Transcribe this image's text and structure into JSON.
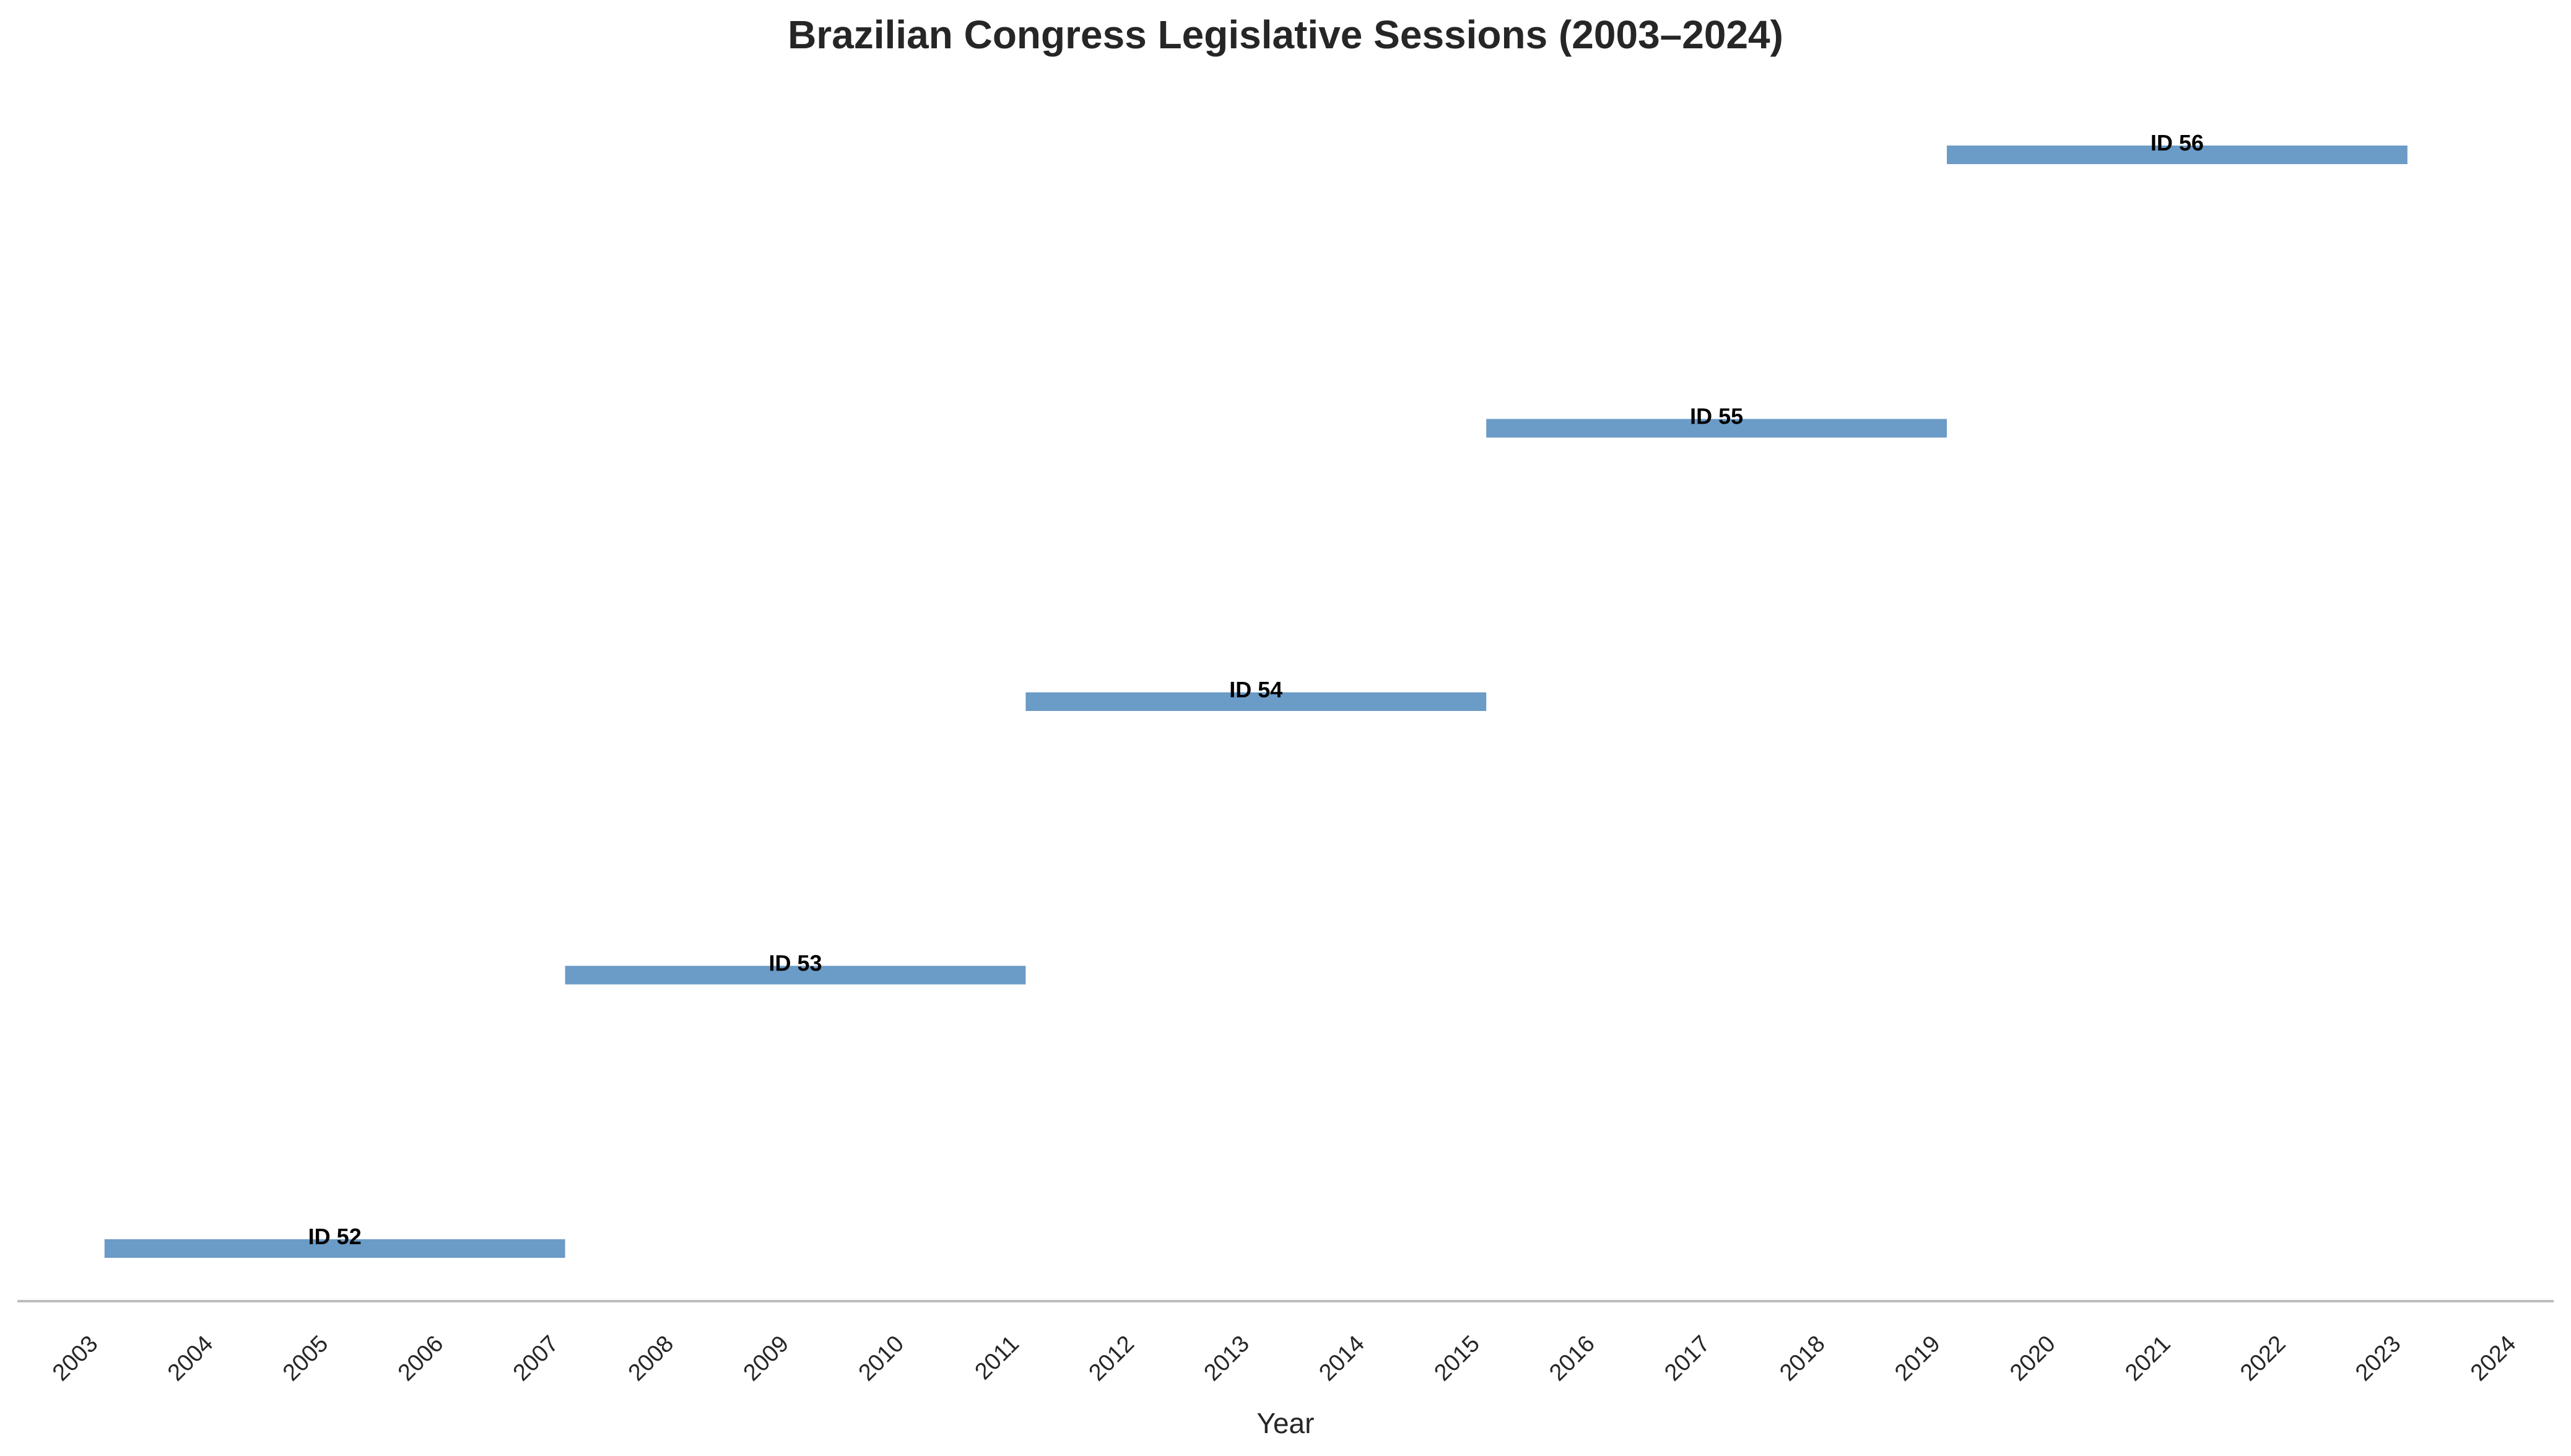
{
  "chart_data": {
    "type": "timeline",
    "title": "Brazilian Congress Legislative Sessions (2003–2024)",
    "xlabel": "Year",
    "ylabel": "",
    "xlim": [
      2003,
      2024
    ],
    "x_ticks": [
      "2003",
      "2004",
      "2005",
      "2006",
      "2007",
      "2008",
      "2009",
      "2010",
      "2011",
      "2012",
      "2013",
      "2014",
      "2015",
      "2016",
      "2017",
      "2018",
      "2019",
      "2020",
      "2021",
      "2022",
      "2023",
      "2024"
    ],
    "grid": false,
    "legend": "none",
    "bar_color": "#6b9bc7",
    "axis_color": "#bdbdbd",
    "sessions": [
      {
        "label": "ID 52",
        "start": "2003-02-01",
        "end": "2007-02-01"
      },
      {
        "label": "ID 53",
        "start": "2007-02-01",
        "end": "2011-02-01"
      },
      {
        "label": "ID 54",
        "start": "2011-02-01",
        "end": "2015-02-01"
      },
      {
        "label": "ID 55",
        "start": "2015-02-01",
        "end": "2019-02-01"
      },
      {
        "label": "ID 56",
        "start": "2019-02-01",
        "end": "2023-02-01"
      }
    ]
  }
}
